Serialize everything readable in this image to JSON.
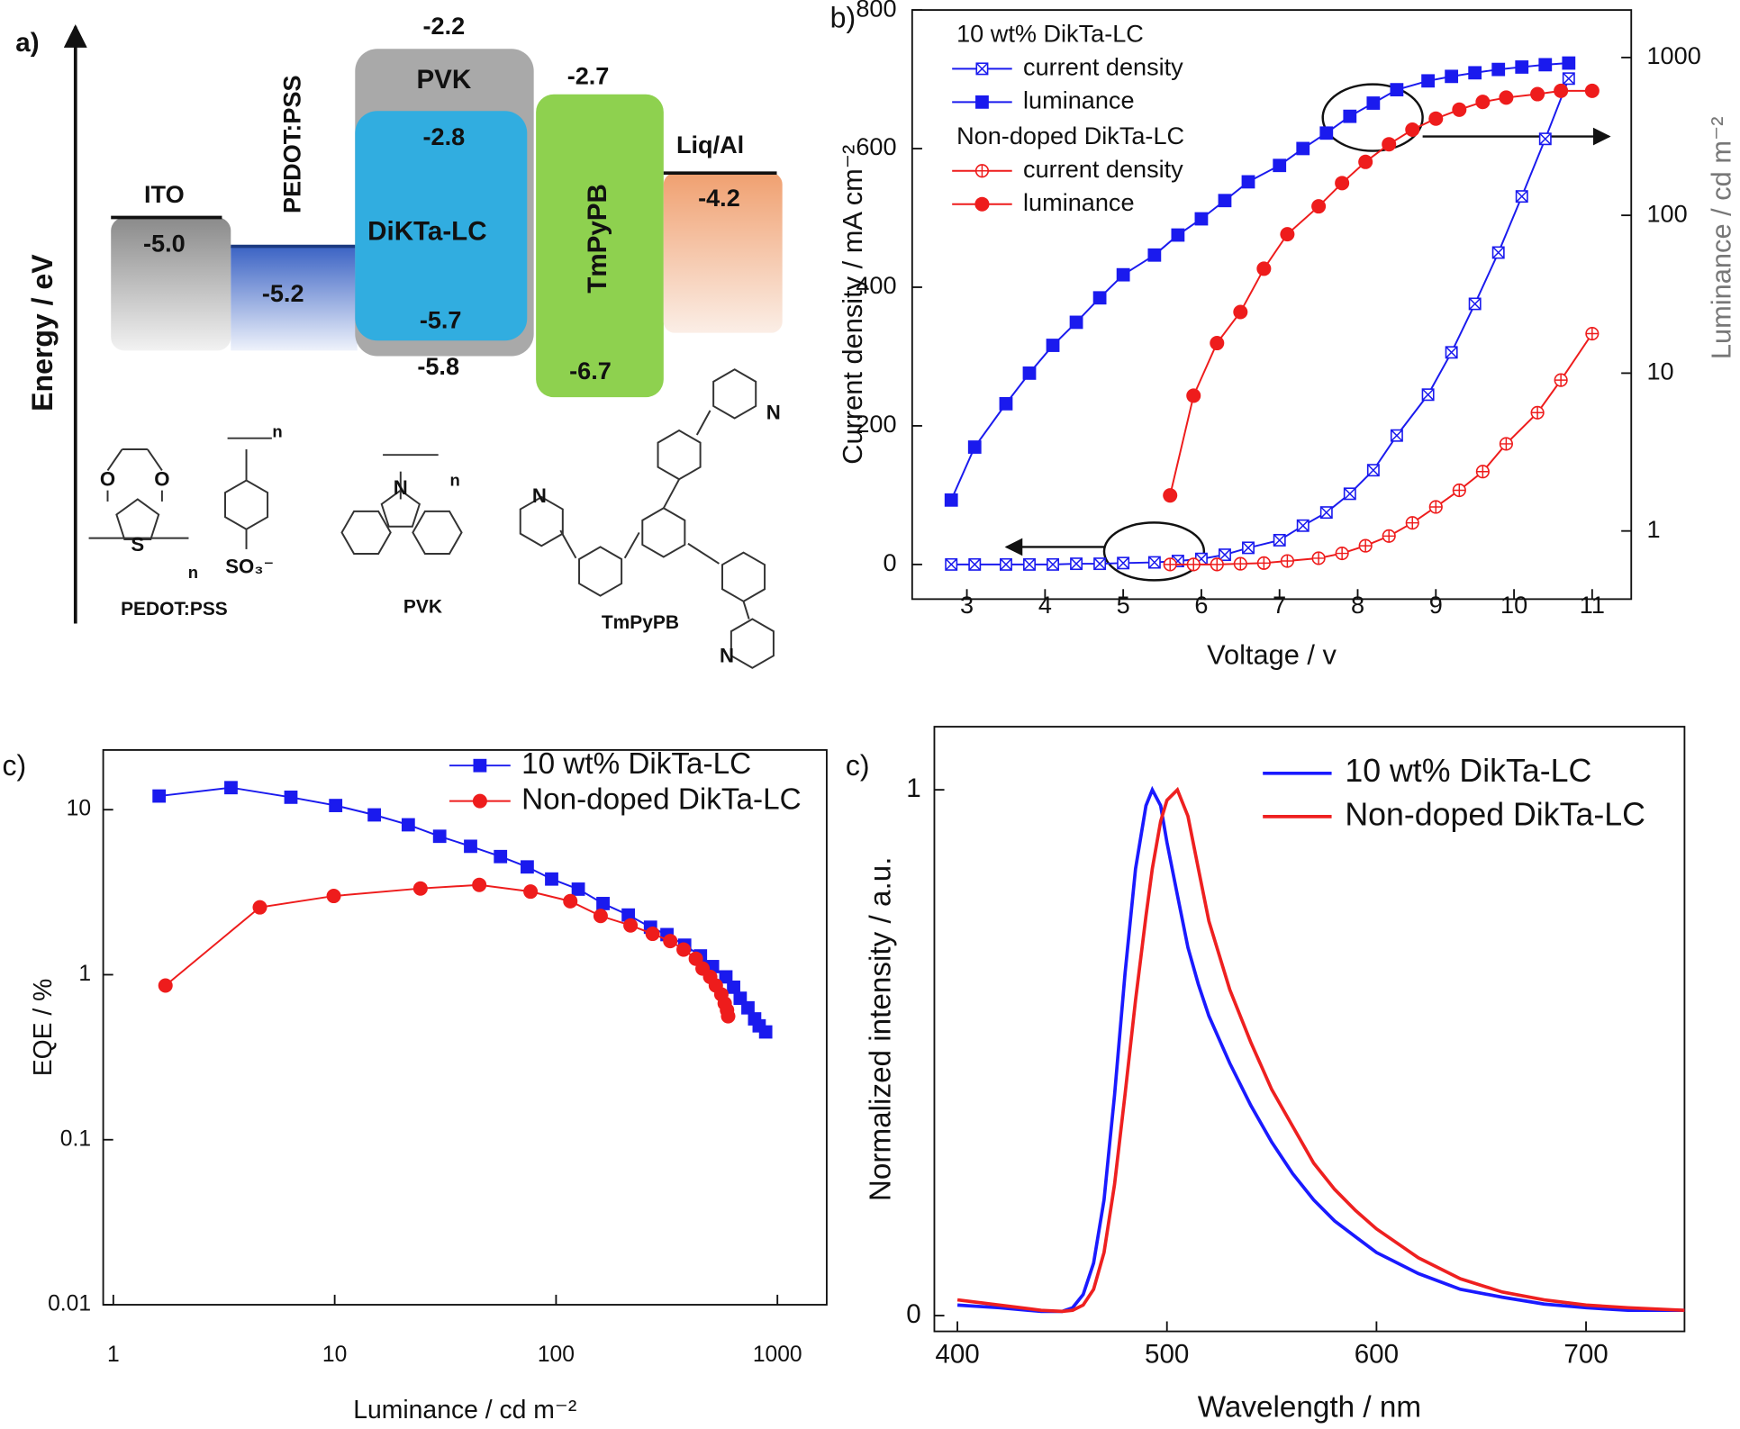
{
  "energy_diagram": {
    "panel_label": "a)",
    "axis_label": "Energy / eV",
    "layers": [
      {
        "name": "ITO",
        "levels": [
          "-5.0"
        ]
      },
      {
        "name": "PEDOT:PSS",
        "levels": [
          "-5.2"
        ]
      },
      {
        "name": "PVK",
        "levels": [
          "-2.2",
          "-5.8"
        ]
      },
      {
        "name": "DiKTa-LC",
        "levels": [
          "-2.8",
          "-5.7"
        ]
      },
      {
        "name": "TmPyPB",
        "levels": [
          "-2.7",
          "-6.7"
        ]
      },
      {
        "name": "Liq/Al",
        "levels": [
          "-4.2"
        ]
      }
    ],
    "structures": [
      {
        "name": "PEDOT:PSS",
        "atoms": [
          "O",
          "O",
          "S",
          "n",
          "n",
          "SO₃⁻"
        ]
      },
      {
        "name": "PVK",
        "atoms": [
          "N",
          "n"
        ]
      },
      {
        "name": "TmPyPB",
        "atoms": [
          "N",
          "N",
          "N"
        ]
      }
    ]
  },
  "chart_data": [
    {
      "type": "line",
      "panel_label": "b)",
      "xlabel": "Voltage / v",
      "ylabel": "Current density / mA cm⁻²",
      "y2label": "Luminance / cd m⁻²",
      "xlim": [
        2.3,
        11.5
      ],
      "xticks": [
        3,
        4,
        5,
        6,
        7,
        8,
        9,
        10,
        11
      ],
      "ylim": [
        -50,
        800
      ],
      "yticks": [
        0,
        200,
        400,
        600,
        800
      ],
      "y2lim": [
        0.37,
        2000
      ],
      "y2ticks": [
        1,
        10,
        100,
        1000
      ],
      "y2scale": "log",
      "groups": [
        {
          "name": "10 wt% DikTa-LC",
          "series": [
            {
              "name": "current density",
              "color": "#1a1aee",
              "marker": "square-x",
              "x": [
                2.8,
                3.1,
                3.5,
                3.8,
                4.1,
                4.4,
                4.7,
                5.0,
                5.4,
                5.7,
                6.0,
                6.3,
                6.6,
                7.0,
                7.3,
                7.6,
                7.9,
                8.2,
                8.5,
                8.9,
                9.2,
                9.5,
                9.8,
                10.1,
                10.4,
                10.7
              ],
              "values": [
                0,
                0,
                0,
                0,
                0,
                1,
                1,
                2,
                3,
                5,
                8,
                14,
                24,
                35,
                56,
                75,
                102,
                136,
                186,
                245,
                306,
                376,
                450,
                531,
                614,
                701
              ]
            },
            {
              "name": "luminance",
              "color": "#1a1aee",
              "marker": "square",
              "axis": "y2",
              "x": [
                2.8,
                3.1,
                3.5,
                3.8,
                4.1,
                4.4,
                4.7,
                5.0,
                5.4,
                5.7,
                6.0,
                6.3,
                6.6,
                7.0,
                7.3,
                7.6,
                7.9,
                8.2,
                8.5,
                8.9,
                9.2,
                9.5,
                9.8,
                10.1,
                10.4,
                10.7
              ],
              "values": [
                1.57,
                3.4,
                6.4,
                10,
                15,
                21,
                30,
                42,
                56,
                75,
                95,
                124,
                163,
                207,
                265,
                332,
                424,
                514,
                625,
                711,
                759,
                800,
                840,
                870,
                900,
                922
              ]
            }
          ]
        },
        {
          "name": "Non-doped DikTa-LC",
          "series": [
            {
              "name": "current density",
              "color": "#ee1c1c",
              "marker": "circle-plus",
              "x": [
                5.6,
                5.9,
                6.2,
                6.5,
                6.8,
                7.1,
                7.5,
                7.8,
                8.1,
                8.4,
                8.7,
                9.0,
                9.3,
                9.6,
                9.9,
                10.3,
                10.6,
                11.0
              ],
              "values": [
                0,
                0,
                0,
                1,
                2,
                5,
                9,
                16,
                27,
                41,
                60,
                83,
                107,
                134,
                174,
                219,
                266,
                333
              ]
            },
            {
              "name": "luminance",
              "color": "#ee1c1c",
              "marker": "circle",
              "axis": "y2",
              "x": [
                5.6,
                5.9,
                6.2,
                6.5,
                6.8,
                7.1,
                7.5,
                7.8,
                8.1,
                8.4,
                8.7,
                9.0,
                9.3,
                9.6,
                9.9,
                10.3,
                10.6,
                11.0
              ],
              "values": [
                1.68,
                7.2,
                15.5,
                24.4,
                45.9,
                75.9,
                114,
                160,
                218,
                282,
                349,
                410,
                467,
                523,
                557,
                586,
                615,
                615
              ]
            }
          ]
        }
      ]
    },
    {
      "type": "line",
      "panel_label": "c)",
      "xlabel": "Luminance / cd m⁻²",
      "ylabel": "EQE / %",
      "xscale": "log",
      "yscale": "log",
      "xlim": [
        0.9,
        1670
      ],
      "xticks": [
        1,
        10,
        100,
        1000
      ],
      "ylim": [
        0.01,
        23
      ],
      "yticks": [
        0.01,
        0.1,
        1,
        10
      ],
      "legend": "upper right",
      "series": [
        {
          "name": "10 wt% DikTa-LC",
          "color": "#1a1aee",
          "marker": "square",
          "x": [
            1.61,
            3.4,
            6.34,
            10.1,
            15.1,
            21.5,
            29.8,
            41.1,
            56.1,
            74.1,
            95.5,
            126,
            163,
            212,
            267,
            317,
            381,
            449,
            509,
            585,
            634,
            679,
            736,
            789,
            827,
            885
          ],
          "values": [
            12.1,
            13.6,
            11.9,
            10.6,
            9.3,
            8.1,
            6.9,
            6.0,
            5.2,
            4.5,
            3.8,
            3.3,
            2.7,
            2.3,
            1.94,
            1.75,
            1.51,
            1.3,
            1.12,
            0.97,
            0.84,
            0.72,
            0.63,
            0.54,
            0.49,
            0.45
          ]
        },
        {
          "name": "Non-doped DikTa-LC",
          "color": "#ee1c1c",
          "marker": "circle",
          "x": [
            1.72,
            4.59,
            9.9,
            24.4,
            45,
            76.7,
            116,
            159,
            217,
            273,
            328,
            377,
            428,
            459,
            497,
            527,
            558,
            578,
            592,
            599
          ],
          "values": [
            0.86,
            2.56,
            3.0,
            3.33,
            3.5,
            3.19,
            2.79,
            2.27,
            1.99,
            1.77,
            1.6,
            1.42,
            1.25,
            1.09,
            0.97,
            0.86,
            0.76,
            0.67,
            0.61,
            0.56
          ]
        }
      ]
    },
    {
      "type": "line",
      "panel_label": "c)",
      "xlabel": "Wavelength / nm",
      "ylabel": "Normalized intensity / a.u.",
      "xlim": [
        389,
        747
      ],
      "xticks": [
        400,
        500,
        600,
        700
      ],
      "ylim": [
        -0.03,
        1.12
      ],
      "yticks": [
        0,
        1
      ],
      "legend": "upper right",
      "series": [
        {
          "name": "10 wt% DikTa-LC",
          "color": "#1a1aff",
          "x": [
            400,
            420,
            440,
            450,
            455,
            460,
            465,
            470,
            475,
            480,
            485,
            490,
            493,
            497,
            500,
            505,
            510,
            515,
            520,
            530,
            540,
            550,
            560,
            570,
            580,
            590,
            600,
            620,
            640,
            660,
            680,
            700,
            720,
            747
          ],
          "values": [
            0.02,
            0.015,
            0.008,
            0.008,
            0.015,
            0.04,
            0.1,
            0.22,
            0.42,
            0.65,
            0.85,
            0.97,
            1.0,
            0.97,
            0.9,
            0.8,
            0.7,
            0.63,
            0.57,
            0.48,
            0.4,
            0.33,
            0.27,
            0.22,
            0.18,
            0.15,
            0.12,
            0.08,
            0.05,
            0.035,
            0.022,
            0.015,
            0.01,
            0.01
          ]
        },
        {
          "name": "Non-doped DikTa-LC",
          "color": "#ee2020",
          "x": [
            400,
            420,
            440,
            450,
            455,
            460,
            465,
            470,
            475,
            480,
            485,
            490,
            493,
            497,
            500,
            505,
            510,
            515,
            520,
            530,
            540,
            550,
            560,
            570,
            580,
            590,
            600,
            620,
            640,
            660,
            680,
            700,
            720,
            747
          ],
          "values": [
            0.03,
            0.02,
            0.01,
            0.008,
            0.01,
            0.02,
            0.05,
            0.12,
            0.25,
            0.42,
            0.6,
            0.76,
            0.85,
            0.94,
            0.98,
            1.0,
            0.95,
            0.85,
            0.75,
            0.62,
            0.52,
            0.43,
            0.36,
            0.29,
            0.24,
            0.2,
            0.165,
            0.11,
            0.07,
            0.045,
            0.03,
            0.02,
            0.015,
            0.01
          ]
        }
      ]
    }
  ]
}
